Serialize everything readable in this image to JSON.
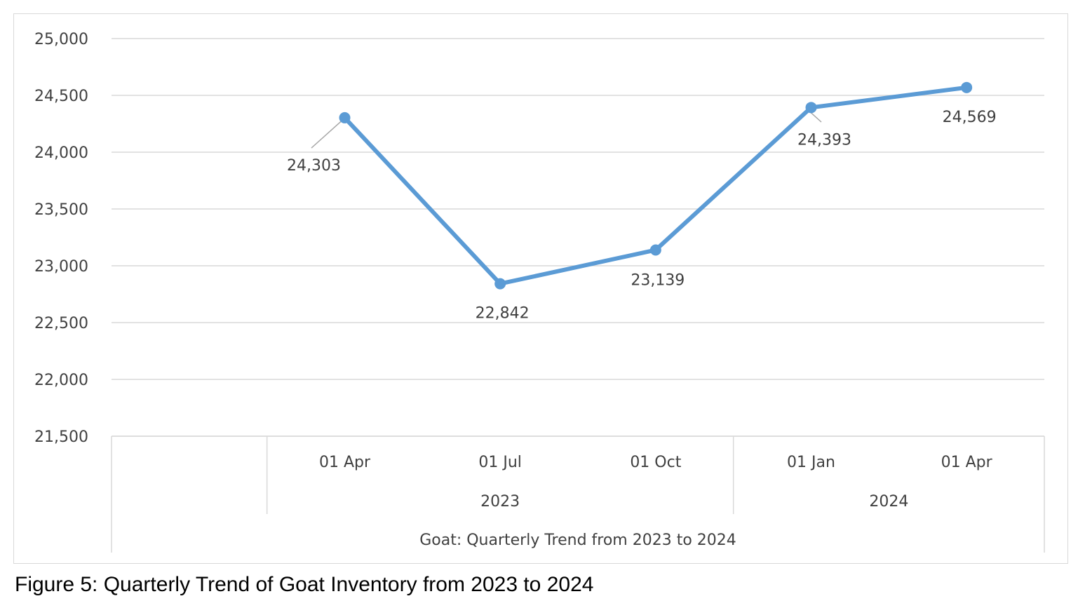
{
  "caption": "Figure 5: Quarterly Trend of Goat Inventory from 2023 to 2024",
  "chart_data": {
    "type": "line",
    "title": "",
    "xlabel": "Goat: Quarterly Trend from 2023 to 2024",
    "ylabel": "",
    "ylim": [
      21500,
      25000
    ],
    "yticks": [
      21500,
      22000,
      22500,
      23000,
      23500,
      24000,
      24500,
      25000
    ],
    "grid": true,
    "categories": [
      "01 Apr",
      "01 Jul",
      "01 Oct",
      "01 Jan",
      "01 Apr"
    ],
    "groups": [
      {
        "label": "2023",
        "count": 3
      },
      {
        "label": "2024",
        "count": 2
      }
    ],
    "series": [
      {
        "values": [
          24303,
          22842,
          23139,
          24393,
          24569
        ],
        "color": "#5b9bd5"
      }
    ],
    "data_labels": [
      "24,303",
      "22,842",
      "23,139",
      "24,393",
      "24,569"
    ]
  }
}
